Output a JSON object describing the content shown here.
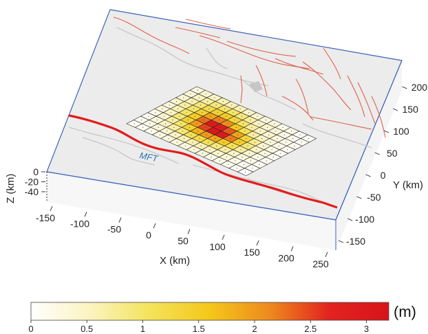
{
  "fault_label": "MFT",
  "axes": {
    "x": {
      "label": "X (km)",
      "ticks": [
        "-150",
        "-100",
        "-50",
        "0",
        "50",
        "100",
        "150",
        "200",
        "250"
      ]
    },
    "y": {
      "label": "Y (km)",
      "ticks": [
        "-150",
        "-100",
        "-50",
        "0",
        "50",
        "100",
        "150",
        "200"
      ]
    },
    "z": {
      "label": "Z (km)",
      "ticks": [
        "0",
        "-20",
        "-40"
      ]
    }
  },
  "colorbar": {
    "unit": "(m)",
    "ticks": [
      "0",
      "0.5",
      "1",
      "1.5",
      "2",
      "2.5",
      "3"
    ],
    "range": [
      0,
      3.2
    ],
    "colors": [
      "#ffffff",
      "#fbf3c0",
      "#f4e35a",
      "#f4c71a",
      "#ee8a1e",
      "#e2231f",
      "#d8141b"
    ]
  },
  "slip_grid": {
    "rows": 10,
    "cols": 14,
    "values": [
      [
        0.3,
        0.4,
        0.5,
        0.6,
        0.6,
        0.6,
        0.5,
        0.4,
        0.3,
        0.3,
        0.2,
        0.2,
        0.1,
        0.1
      ],
      [
        0.3,
        0.5,
        0.7,
        0.9,
        1.0,
        1.0,
        0.9,
        0.7,
        0.5,
        0.4,
        0.3,
        0.2,
        0.1,
        0.1
      ],
      [
        0.4,
        0.6,
        0.9,
        1.2,
        1.4,
        1.5,
        1.3,
        1.0,
        0.7,
        0.5,
        0.4,
        0.3,
        0.2,
        0.1
      ],
      [
        0.4,
        0.7,
        1.0,
        1.4,
        1.9,
        2.2,
        2.1,
        1.6,
        1.1,
        0.7,
        0.5,
        0.3,
        0.2,
        0.1
      ],
      [
        0.3,
        0.6,
        1.0,
        1.5,
        2.3,
        3.0,
        2.9,
        2.4,
        1.9,
        1.3,
        0.8,
        0.4,
        0.2,
        0.1
      ],
      [
        0.3,
        0.5,
        0.9,
        1.4,
        2.0,
        2.5,
        3.1,
        3.0,
        2.2,
        1.5,
        0.9,
        0.5,
        0.3,
        0.1
      ],
      [
        0.2,
        0.4,
        0.7,
        1.0,
        1.4,
        1.8,
        2.0,
        1.9,
        1.5,
        1.1,
        0.7,
        0.4,
        0.2,
        0.1
      ],
      [
        0.1,
        0.3,
        0.5,
        0.7,
        0.9,
        1.1,
        1.2,
        1.1,
        0.9,
        0.7,
        0.5,
        0.3,
        0.2,
        0.1
      ],
      [
        0.1,
        0.2,
        0.3,
        0.4,
        0.5,
        0.6,
        0.6,
        0.6,
        0.5,
        0.4,
        0.3,
        0.2,
        0.1,
        0.1
      ],
      [
        0.1,
        0.1,
        0.2,
        0.2,
        0.3,
        0.3,
        0.3,
        0.3,
        0.3,
        0.2,
        0.2,
        0.1,
        0.1,
        0.0
      ]
    ]
  }
}
